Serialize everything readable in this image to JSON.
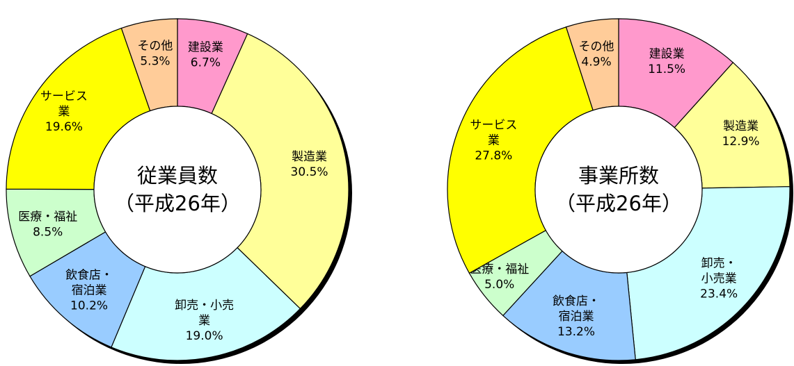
{
  "chart_data": [
    {
      "type": "pie",
      "title": "従業員数",
      "subtitle": "（平成26年）",
      "unit": "%",
      "slices": [
        {
          "label": [
            "建設業"
          ],
          "value": 6.7,
          "value_text": "6.7%",
          "color": "#ff99cc"
        },
        {
          "label": [
            "製造業"
          ],
          "value": 30.5,
          "value_text": "30.5%",
          "color": "#ffff99"
        },
        {
          "label": [
            "卸売・小売",
            "業"
          ],
          "value": 19.0,
          "value_text": "19.0%",
          "color": "#ccffff"
        },
        {
          "label": [
            "飲食店・",
            "宿泊業"
          ],
          "value": 10.2,
          "value_text": "10.2%",
          "color": "#99ccff"
        },
        {
          "label": [
            "医療・福祉"
          ],
          "value": 8.5,
          "value_text": "8.5%",
          "color": "#ccffcc"
        },
        {
          "label": [
            "サービス",
            "業"
          ],
          "value": 19.6,
          "value_text": "19.6%",
          "color": "#ffff00"
        },
        {
          "label": [
            "その他"
          ],
          "value": 5.3,
          "value_text": "5.3%",
          "color": "#ffcc99"
        }
      ]
    },
    {
      "type": "pie",
      "title": "事業所数",
      "subtitle": "（平成26年）",
      "unit": "%",
      "slices": [
        {
          "label": [
            "建設業"
          ],
          "value": 11.5,
          "value_text": "11.5%",
          "color": "#ff99cc"
        },
        {
          "label": [
            "製造業"
          ],
          "value": 12.9,
          "value_text": "12.9%",
          "color": "#ffff99"
        },
        {
          "label": [
            "卸売・",
            "小売業"
          ],
          "value": 23.4,
          "value_text": "23.4%",
          "color": "#ccffff"
        },
        {
          "label": [
            "飲食店・",
            "宿泊業"
          ],
          "value": 13.2,
          "value_text": "13.2%",
          "color": "#99ccff"
        },
        {
          "label": [
            "医療・福祉"
          ],
          "value": 5.0,
          "value_text": "5.0%",
          "color": "#ccffcc"
        },
        {
          "label": [
            "サービス",
            "業"
          ],
          "value": 27.8,
          "value_text": "27.8%",
          "color": "#ffff00"
        },
        {
          "label": [
            "その他"
          ],
          "value": 4.9,
          "value_text": "4.9%",
          "color": "#ffcc99"
        }
      ]
    }
  ]
}
